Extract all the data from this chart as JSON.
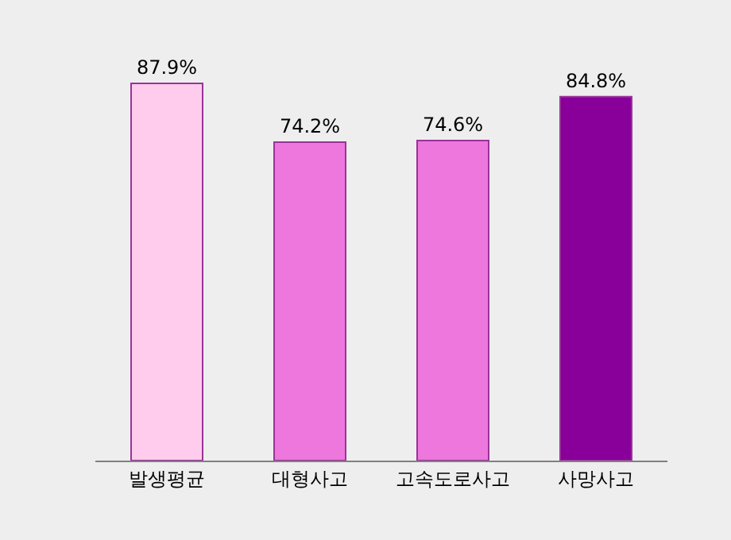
{
  "chart_data": {
    "type": "bar",
    "categories": [
      "발생평균",
      "대형사고",
      "고속도로사고",
      "사망사고"
    ],
    "values": [
      87.9,
      74.2,
      74.6,
      84.8
    ],
    "colors": [
      "#ffccee",
      "#ee77dd",
      "#ee77dd",
      "#880099"
    ],
    "value_labels": [
      "87.9%",
      "74.2%",
      "74.6%",
      "84.8%"
    ]
  }
}
